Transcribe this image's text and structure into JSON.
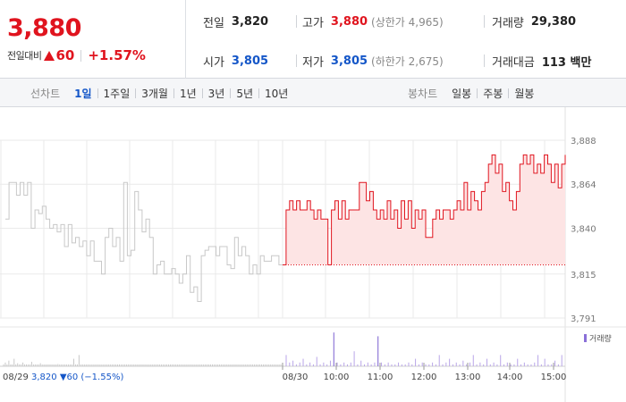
{
  "summary": {
    "current_price": "3,880",
    "change_label": "전일대비",
    "change_value": "60",
    "change_percent": "+1.57%",
    "prev_close": {
      "label": "전일",
      "value": "3,820"
    },
    "high": {
      "label": "고가",
      "value": "3,880",
      "sub": "(상한가 4,965)"
    },
    "volume": {
      "label": "거래량",
      "value": "29,380"
    },
    "open": {
      "label": "시가",
      "value": "3,805"
    },
    "low": {
      "label": "저가",
      "value": "3,805",
      "sub": "(하한가 2,675)"
    },
    "amount": {
      "label": "거래대금",
      "value": "113 백만"
    }
  },
  "line_tabs": {
    "title": "선차트",
    "items": [
      "1일",
      "1주일",
      "3개월",
      "1년",
      "3년",
      "5년",
      "10년"
    ],
    "active": "1일"
  },
  "candle_tabs": {
    "title": "봉차트",
    "items": [
      "일봉",
      "주봉",
      "월봉"
    ]
  },
  "colors": {
    "up": "#e0141e",
    "down": "#1456c8",
    "prev_day_line": "#c8c8c8",
    "fill": "#fde4e4"
  },
  "chart_data": {
    "type": "line",
    "y_ticks": [
      "3,888",
      "3,864",
      "3,840",
      "3,815",
      "3,791"
    ],
    "ylim": [
      3791,
      3888
    ],
    "baseline": 3820,
    "volume_legend": "거래량",
    "x_labels": [
      "08/30",
      "10:00",
      "11:00",
      "12:00",
      "13:00",
      "14:00",
      "15:00"
    ],
    "prev_day": {
      "label": "08/29",
      "close": "3,820",
      "change": "▼60",
      "change_pct": "(−1.55%)"
    },
    "series": [
      {
        "day": "prev",
        "values": [
          3845,
          3865,
          3865,
          3858,
          3865,
          3858,
          3865,
          3840,
          3850,
          3848,
          3852,
          3845,
          3840,
          3842,
          3838,
          3842,
          3830,
          3842,
          3832,
          3835,
          3830,
          3833,
          3825,
          3833,
          3822,
          3822,
          3815,
          3835,
          3840,
          3830,
          3835,
          3822,
          3865,
          3825,
          3828,
          3860,
          3850,
          3838,
          3845,
          3835,
          3815,
          3820,
          3822,
          3815,
          3815,
          3818,
          3815,
          3810,
          3815,
          3825,
          3805,
          3808,
          3800,
          3825,
          3828,
          3830,
          3830,
          3825,
          3830,
          3830,
          3820,
          3818,
          3835,
          3825,
          3830,
          3825,
          3815,
          3820,
          3815,
          3825,
          3822,
          3822,
          3825,
          3825,
          3820,
          3820
        ]
      },
      {
        "day": "today",
        "values": [
          3820,
          3850,
          3855,
          3850,
          3855,
          3850,
          3850,
          3855,
          3850,
          3845,
          3850,
          3845,
          3845,
          3820,
          3850,
          3855,
          3845,
          3855,
          3845,
          3850,
          3850,
          3850,
          3865,
          3865,
          3855,
          3860,
          3850,
          3845,
          3850,
          3845,
          3855,
          3845,
          3850,
          3840,
          3855,
          3845,
          3855,
          3840,
          3850,
          3845,
          3850,
          3835,
          3835,
          3845,
          3850,
          3845,
          3850,
          3850,
          3845,
          3850,
          3855,
          3850,
          3865,
          3850,
          3860,
          3855,
          3850,
          3860,
          3865,
          3875,
          3880,
          3870,
          3875,
          3860,
          3865,
          3855,
          3850,
          3860,
          3875,
          3880,
          3875,
          3880,
          3870,
          3875,
          3870,
          3880,
          3875,
          3865,
          3875,
          3862,
          3875,
          3880
        ]
      }
    ],
    "volume_heights": [
      0.05,
      0.1,
      0.05,
      0.15,
      0.05,
      0.05,
      0.2,
      0.05,
      0.08,
      0.05,
      0.05,
      0.1,
      0.05,
      0.05,
      0.05,
      0.05,
      0.12,
      0.05,
      0.05,
      0.05,
      0.05,
      0.08,
      0.05,
      0.05,
      0.05,
      0.05,
      0.05,
      0.05,
      0.05,
      0.05,
      0.05,
      0.06,
      0.05,
      0.05,
      0.05,
      0.05,
      0.05,
      0.05,
      0.05,
      0.05,
      0.2,
      0.05,
      0.05,
      0.3,
      0.05,
      0.05,
      0.05,
      0.05,
      0.05,
      0.05,
      0.05,
      0.05,
      0.05,
      0.05,
      0.05,
      0.05,
      0.05,
      0.05,
      0.05,
      0.05,
      0.05,
      0.05,
      0.05,
      0.05,
      0.05,
      0.05,
      0.05,
      0.05,
      0.05,
      0.05,
      0.05,
      0.05,
      0.05,
      0.05,
      0.05,
      0.05,
      0.05,
      0.05,
      0.05,
      0.05,
      0.05,
      0.05,
      0.05,
      0.05,
      0.05,
      0.05,
      0.05,
      0.05,
      0.05,
      0.05,
      0.05,
      0.05,
      0.05,
      0.05,
      0.05,
      0.05,
      0.05,
      0.05,
      0.05,
      0.05,
      0.05,
      0.05,
      0.05,
      0.05,
      0.05,
      0.05,
      0.05,
      0.05,
      0.05,
      0.05,
      0.05,
      0.05,
      0.05,
      0.05,
      0.05,
      0.05,
      0.05,
      0.05,
      0.05,
      0.05,
      0.05,
      0.05,
      0.05,
      0.05,
      0.05,
      0.05,
      0.05,
      0.05,
      0.05,
      0.05,
      0.05,
      0.05,
      0.05,
      0.05,
      0.05,
      0.05,
      0.05,
      0.05,
      0.05,
      0.05,
      0.05,
      0.05,
      0.05,
      0.05,
      0.05,
      0.05,
      0.05,
      0.05,
      0.05,
      0.05,
      0.05,
      0.05,
      0.05,
      0.05,
      0.05,
      0.05,
      0.05,
      0.05,
      0.05
    ],
    "volume_today_heights": [
      0.3,
      0.1,
      0.15,
      0.05,
      0.1,
      0.2,
      0.05,
      0.1,
      0.05,
      0.25,
      0.05,
      0.1,
      0.05,
      0.15,
      0.9,
      0.1,
      0.05,
      0.1,
      0.05,
      0.1,
      0.4,
      0.05,
      0.15,
      0.05,
      0.1,
      0.05,
      0.1,
      0.8,
      0.1,
      0.05,
      0.1,
      0.05,
      0.05,
      0.1,
      0.05,
      0.05,
      0.1,
      0.05,
      0.2,
      0.05,
      0.1,
      0.05,
      0.05,
      0.1,
      0.05,
      0.3,
      0.05,
      0.1,
      0.2,
      0.05,
      0.1,
      0.05,
      0.15,
      0.05,
      0.1,
      0.3,
      0.05,
      0.1,
      0.05,
      0.2,
      0.05,
      0.1,
      0.05,
      0.3,
      0.05,
      0.1,
      0.05,
      0.05,
      0.2,
      0.05,
      0.1,
      0.05,
      0.05,
      0.1,
      0.3,
      0.05,
      0.2,
      0.05,
      0.05,
      0.15,
      0.05,
      0.3
    ]
  }
}
